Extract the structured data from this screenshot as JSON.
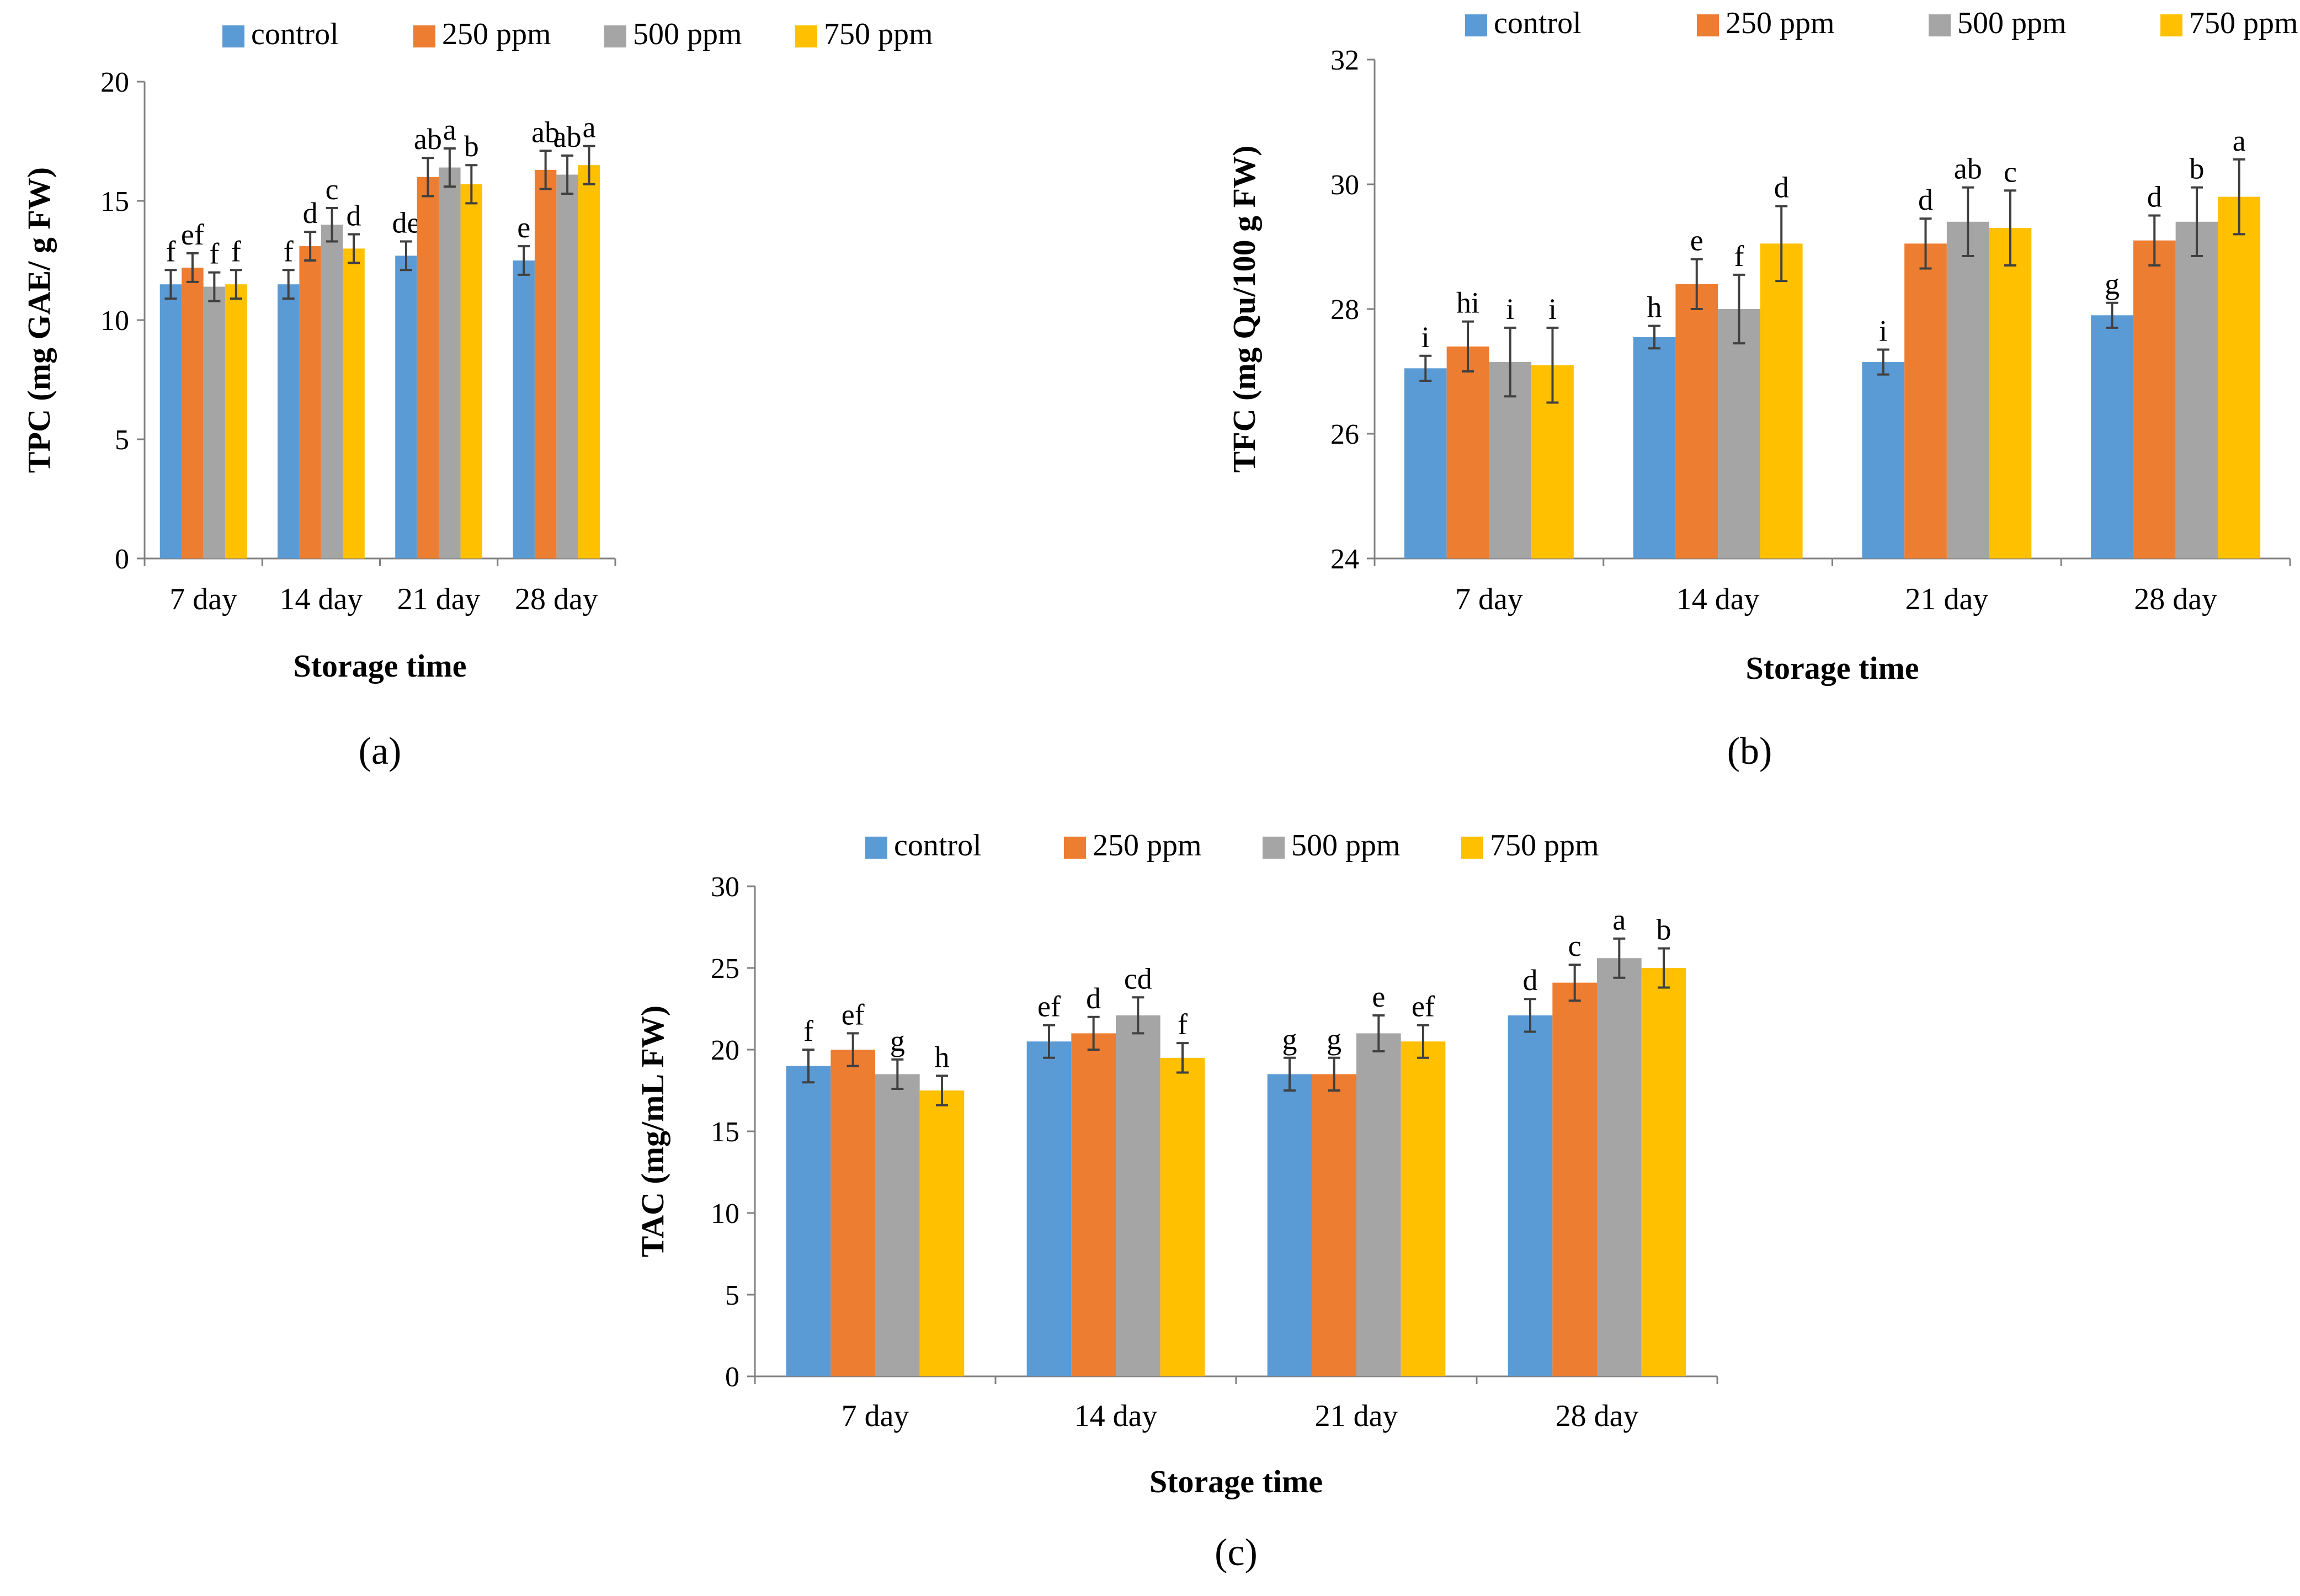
{
  "colors": {
    "control": "#5B9BD5",
    "250 ppm": "#ED7D31",
    "500 ppm": "#A5A5A5",
    "750 ppm": "#FFC000",
    "axis": "#808080",
    "errorbar": "#404040"
  },
  "chart_data": [
    {
      "type": "bar",
      "panel_label": "(a)",
      "xlabel": "Storage time",
      "ylabel": "TPC (mg GAE/ g FW)",
      "categories": [
        "7 day",
        "14 day",
        "21 day",
        "28 day"
      ],
      "ylim": [
        0,
        20
      ],
      "yticks": [
        0,
        5,
        10,
        15,
        20
      ],
      "legend": [
        "control",
        "250 ppm",
        "500 ppm",
        "750 ppm"
      ],
      "series": [
        {
          "name": "control",
          "values": [
            11.5,
            11.5,
            12.7,
            12.5
          ],
          "errors": [
            0.6,
            0.6,
            0.6,
            0.6
          ],
          "letters": [
            "f",
            "f",
            "de",
            "e"
          ]
        },
        {
          "name": "250 ppm",
          "values": [
            12.2,
            13.1,
            16.0,
            16.3
          ],
          "errors": [
            0.6,
            0.6,
            0.8,
            0.8
          ],
          "letters": [
            "ef",
            "d",
            "ab",
            "ab"
          ]
        },
        {
          "name": "500 ppm",
          "values": [
            11.4,
            14.0,
            16.4,
            16.1
          ],
          "errors": [
            0.6,
            0.7,
            0.8,
            0.8
          ],
          "letters": [
            "f",
            "c",
            "a",
            "ab"
          ]
        },
        {
          "name": "750 ppm",
          "values": [
            11.5,
            13.0,
            15.7,
            16.5
          ],
          "errors": [
            0.6,
            0.6,
            0.8,
            0.8
          ],
          "letters": [
            "f",
            "d",
            "b",
            "a"
          ]
        }
      ]
    },
    {
      "type": "bar",
      "panel_label": "(b)",
      "xlabel": "Storage time",
      "ylabel": "TFC (mg  Qu/100 g FW)",
      "categories": [
        "7 day",
        "14 day",
        "21 day",
        "28 day"
      ],
      "ylim": [
        24,
        32
      ],
      "yticks": [
        24,
        26,
        28,
        30,
        32
      ],
      "legend": [
        "control",
        "250 ppm",
        "500 ppm",
        "750 ppm"
      ],
      "series": [
        {
          "name": "control",
          "values": [
            27.05,
            27.55,
            27.15,
            27.9
          ],
          "errors": [
            0.2,
            0.18,
            0.2,
            0.2
          ],
          "letters": [
            "i",
            "h",
            "i",
            "g"
          ]
        },
        {
          "name": "250 ppm",
          "values": [
            27.4,
            28.4,
            29.05,
            29.1
          ],
          "errors": [
            0.4,
            0.4,
            0.4,
            0.4
          ],
          "letters": [
            "hi",
            "e",
            "d",
            "d"
          ]
        },
        {
          "name": "500 ppm",
          "values": [
            27.15,
            28.0,
            29.4,
            29.4
          ],
          "errors": [
            0.55,
            0.55,
            0.55,
            0.55
          ],
          "letters": [
            "i",
            "f",
            "ab",
            "b"
          ]
        },
        {
          "name": "750 ppm",
          "values": [
            27.1,
            29.05,
            29.3,
            29.8
          ],
          "errors": [
            0.6,
            0.6,
            0.6,
            0.6
          ],
          "letters": [
            "i",
            "d",
            "c",
            "a"
          ]
        }
      ]
    },
    {
      "type": "bar",
      "panel_label": "(c)",
      "xlabel": "Storage time",
      "ylabel": "TAC (mg/mL FW)",
      "categories": [
        "7 day",
        "14 day",
        "21 day",
        "28 day"
      ],
      "ylim": [
        0,
        30
      ],
      "yticks": [
        0,
        5,
        10,
        15,
        20,
        25,
        30
      ],
      "legend": [
        "control",
        "250 ppm",
        "500 ppm",
        "750 ppm"
      ],
      "series": [
        {
          "name": "control",
          "values": [
            19.0,
            20.5,
            18.5,
            22.1
          ],
          "errors": [
            1.0,
            1.0,
            1.0,
            1.0
          ],
          "letters": [
            "f",
            "ef",
            "g",
            "d"
          ]
        },
        {
          "name": "250 ppm",
          "values": [
            20.0,
            21.0,
            18.5,
            24.1
          ],
          "errors": [
            1.0,
            1.0,
            1.0,
            1.1
          ],
          "letters": [
            "ef",
            "d",
            "g",
            "c"
          ]
        },
        {
          "name": "500 ppm",
          "values": [
            18.5,
            22.1,
            21.0,
            25.6
          ],
          "errors": [
            0.9,
            1.1,
            1.1,
            1.2
          ],
          "letters": [
            "g",
            "cd",
            "e",
            "a"
          ]
        },
        {
          "name": "750 ppm",
          "values": [
            17.5,
            19.5,
            20.5,
            25.0
          ],
          "errors": [
            0.9,
            0.9,
            1.0,
            1.2
          ],
          "letters": [
            "h",
            "f",
            "ef",
            "b"
          ]
        }
      ]
    }
  ]
}
